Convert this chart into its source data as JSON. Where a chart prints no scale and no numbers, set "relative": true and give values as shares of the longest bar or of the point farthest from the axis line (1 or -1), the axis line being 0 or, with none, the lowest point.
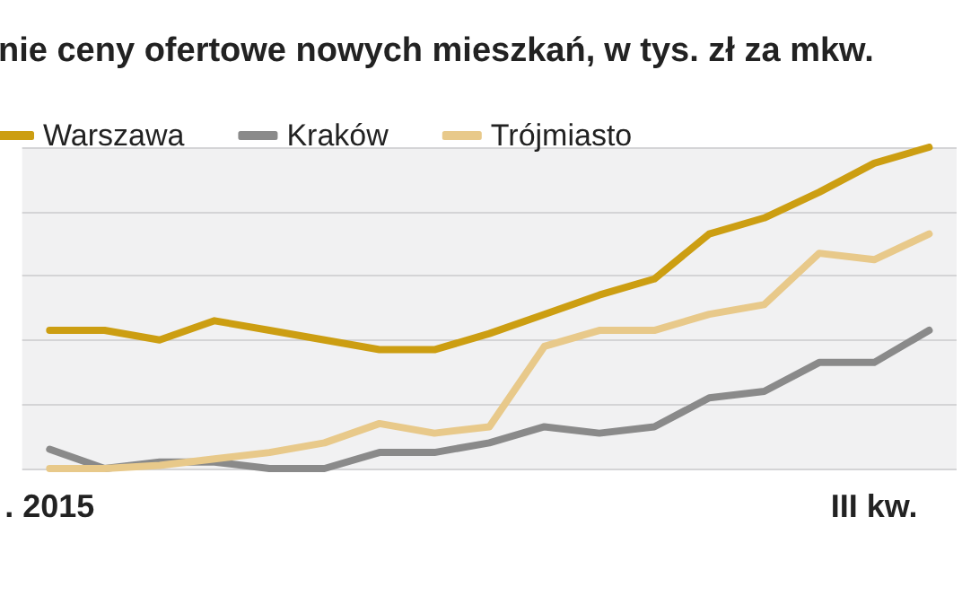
{
  "chart_data": {
    "type": "line",
    "title": "nie ceny ofertowe nowych mieszkań,",
    "subtitle": "w tys. zł za mkw.",
    "relative": true,
    "categories": [
      ". 2015",
      null,
      null,
      null,
      null,
      null,
      null,
      null,
      null,
      null,
      null,
      null,
      null,
      null,
      null,
      "III kw.",
      null
    ],
    "series": [
      {
        "name": "Warszawa",
        "color": "#cc9e12",
        "values": [
          0.43,
          0.43,
          0.4,
          0.46,
          0.43,
          0.4,
          0.37,
          0.37,
          0.42,
          0.48,
          0.54,
          0.59,
          0.73,
          0.78,
          0.86,
          0.95,
          1
        ]
      },
      {
        "name": "Kraków",
        "color": "#8a8a8a",
        "values": [
          0.06,
          0,
          0.02,
          0.02,
          0,
          0,
          0.05,
          0.05,
          0.08,
          0.13,
          0.11,
          0.13,
          0.22,
          0.24,
          0.33,
          0.33,
          0.43
        ]
      },
      {
        "name": "Trójmiasto",
        "color": "#e8c98a",
        "values": [
          0,
          0,
          0.01,
          0.03,
          0.05,
          0.08,
          0.14,
          0.11,
          0.13,
          0.38,
          0.43,
          0.43,
          0.48,
          0.51,
          0.67,
          0.65,
          0.73
        ]
      }
    ],
    "grid": "y",
    "legend": "top left",
    "marker": "none",
    "line_style": "solid"
  }
}
